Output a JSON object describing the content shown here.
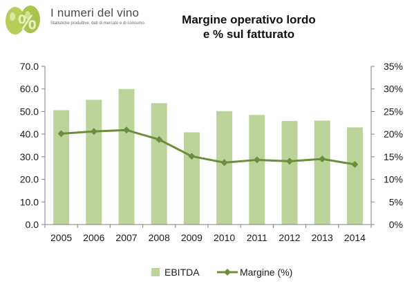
{
  "logo": {
    "title": "I numeri del vino",
    "subtitle": "Statistiche produttive, dati di mercato e di consumo."
  },
  "colors": {
    "bar": "#bcd49a",
    "line": "#6b8e3a",
    "axis": "#808080"
  },
  "chart_data": {
    "type": "bar",
    "title_lines": [
      "Margine operativo lordo",
      "e % sul fatturato"
    ],
    "categories": [
      "2005",
      "2006",
      "2007",
      "2008",
      "2009",
      "2010",
      "2011",
      "2012",
      "2013",
      "2014"
    ],
    "series": [
      {
        "name": "EBITDA",
        "type": "bar",
        "axis": "left",
        "values": [
          50.6,
          55.2,
          60.0,
          53.7,
          40.8,
          50.2,
          48.5,
          45.8,
          46.0,
          43.0
        ]
      },
      {
        "name": "Margine (%)",
        "type": "line",
        "axis": "right",
        "marker": "diamond",
        "values": [
          20.1,
          20.6,
          20.9,
          18.8,
          15.1,
          13.7,
          14.3,
          14.0,
          14.5,
          13.3
        ]
      }
    ],
    "ylim_left": [
      0,
      70
    ],
    "ylim_right": [
      0,
      35
    ],
    "yticks_left": [
      "0.0",
      "10.0",
      "20.0",
      "30.0",
      "40.0",
      "50.0",
      "60.0",
      "70.0"
    ],
    "yticks_right": [
      "0%",
      "5%",
      "10%",
      "15%",
      "20%",
      "25%",
      "30%",
      "35%"
    ],
    "grid": false,
    "legend": "bottom"
  }
}
